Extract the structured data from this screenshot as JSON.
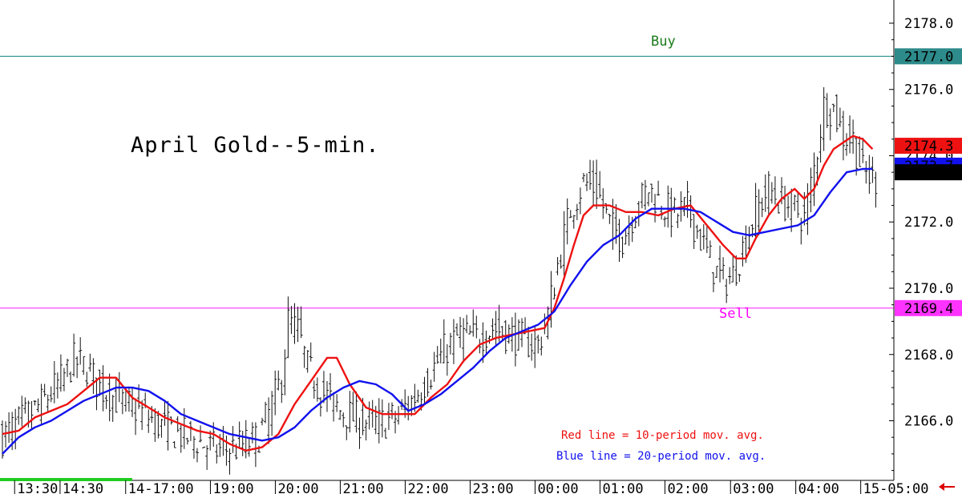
{
  "chart_data": {
    "type": "bar",
    "title": "April Gold--5-min.",
    "ylim": [
      2164.2,
      2178.7
    ],
    "y_ticks": [
      "2178.0",
      "2176.0",
      "2174.0",
      "2172.0",
      "2170.0",
      "2168.0",
      "2166.0"
    ],
    "y_tick_values": [
      2178,
      2176,
      2174,
      2172,
      2170,
      2168,
      2166
    ],
    "x_ticks": [
      "13:30",
      "14:30",
      "14-17:00",
      "19:00",
      "20:00",
      "21:00",
      "22:00",
      "23:00",
      "00:00",
      "01:00",
      "02:00",
      "03:00",
      "04:00",
      "15-05:00"
    ],
    "x_tick_bars": [
      4.5,
      18.5,
      38.7,
      64.8,
      84.8,
      104.8,
      124.8,
      144.8,
      164.8,
      184.8,
      204.8,
      225.0,
      245.1,
      265.1
    ],
    "price_levels": [
      {
        "name": "buy-line",
        "label": "Buy",
        "tag": "2177.0",
        "value": 2177.0,
        "color": "#3a9a9a",
        "tag_color": "#2e8b8b",
        "label_color": "#1b7a1b"
      },
      {
        "name": "sell-line",
        "label": "Sell",
        "tag": "2169.4",
        "value": 2169.4,
        "color": "#ff33ff",
        "tag_color": "#ff33ff",
        "label_color": "#ff00ff"
      }
    ],
    "last_values": [
      {
        "name": "ma10-last-tag",
        "tag": "2174.3",
        "value": 2174.3,
        "color": "#ee1111",
        "text_color": "#ffffff"
      },
      {
        "name": "ma20-last-tag",
        "tag": "2173.7",
        "value": 2173.7,
        "color": "#1111ee",
        "text_color": "#ffffff"
      },
      {
        "name": "price-last-tag",
        "tag": "2173.5",
        "value": 2173.5,
        "color": "#000000",
        "text_color": "#ffffff"
      }
    ],
    "legend": [
      {
        "text": "Red line = 10-period mov. avg.",
        "color": "#ee1111"
      },
      {
        "text": "Blue line = 20-period mov. avg.",
        "color": "#1111ee"
      }
    ],
    "series": [
      {
        "name": "10-period mov. avg.",
        "color": "#ee1111",
        "points": [
          [
            0,
            2165.6
          ],
          [
            5,
            2165.7
          ],
          [
            10,
            2166.1
          ],
          [
            15,
            2166.3
          ],
          [
            20,
            2166.5
          ],
          [
            25,
            2166.9
          ],
          [
            30,
            2167.3
          ],
          [
            35,
            2167.3
          ],
          [
            40,
            2166.7
          ],
          [
            45,
            2166.4
          ],
          [
            50,
            2166.1
          ],
          [
            55,
            2165.9
          ],
          [
            60,
            2165.7
          ],
          [
            65,
            2165.6
          ],
          [
            70,
            2165.3
          ],
          [
            75,
            2165.1
          ],
          [
            80,
            2165.2
          ],
          [
            85,
            2165.6
          ],
          [
            90,
            2166.5
          ],
          [
            95,
            2167.2
          ],
          [
            100,
            2167.9
          ],
          [
            103,
            2167.9
          ],
          [
            107,
            2167.1
          ],
          [
            112,
            2166.4
          ],
          [
            117,
            2166.2
          ],
          [
            122,
            2166.2
          ],
          [
            127,
            2166.2
          ],
          [
            132,
            2166.7
          ],
          [
            137,
            2167.1
          ],
          [
            142,
            2167.8
          ],
          [
            147,
            2168.3
          ],
          [
            152,
            2168.5
          ],
          [
            157,
            2168.6
          ],
          [
            162,
            2168.7
          ],
          [
            167,
            2168.8
          ],
          [
            170,
            2169.4
          ],
          [
            173,
            2170.3
          ],
          [
            176,
            2171.3
          ],
          [
            179,
            2172.2
          ],
          [
            182,
            2172.5
          ],
          [
            187,
            2172.5
          ],
          [
            192,
            2172.3
          ],
          [
            197,
            2172.3
          ],
          [
            202,
            2172.2
          ],
          [
            207,
            2172.4
          ],
          [
            212,
            2172.5
          ],
          [
            217,
            2171.9
          ],
          [
            222,
            2171.3
          ],
          [
            226,
            2170.9
          ],
          [
            229,
            2170.9
          ],
          [
            232,
            2171.5
          ],
          [
            236,
            2172.2
          ],
          [
            240,
            2172.7
          ],
          [
            244,
            2173.0
          ],
          [
            247,
            2172.7
          ],
          [
            250,
            2173.0
          ],
          [
            253,
            2173.7
          ],
          [
            256,
            2174.2
          ],
          [
            259,
            2174.4
          ],
          [
            262,
            2174.6
          ],
          [
            265,
            2174.5
          ],
          [
            268,
            2174.2
          ]
        ]
      },
      {
        "name": "20-period mov. avg.",
        "color": "#1111ee",
        "points": [
          [
            0,
            2165.0
          ],
          [
            5,
            2165.5
          ],
          [
            10,
            2165.8
          ],
          [
            15,
            2166.0
          ],
          [
            20,
            2166.3
          ],
          [
            25,
            2166.6
          ],
          [
            30,
            2166.8
          ],
          [
            35,
            2167.0
          ],
          [
            40,
            2167.0
          ],
          [
            45,
            2166.9
          ],
          [
            50,
            2166.6
          ],
          [
            55,
            2166.2
          ],
          [
            60,
            2166.0
          ],
          [
            65,
            2165.8
          ],
          [
            70,
            2165.6
          ],
          [
            75,
            2165.5
          ],
          [
            80,
            2165.4
          ],
          [
            85,
            2165.5
          ],
          [
            90,
            2165.8
          ],
          [
            95,
            2166.3
          ],
          [
            100,
            2166.7
          ],
          [
            105,
            2167.0
          ],
          [
            110,
            2167.2
          ],
          [
            115,
            2167.1
          ],
          [
            120,
            2166.8
          ],
          [
            125,
            2166.3
          ],
          [
            130,
            2166.5
          ],
          [
            135,
            2166.8
          ],
          [
            140,
            2167.2
          ],
          [
            145,
            2167.6
          ],
          [
            150,
            2168.1
          ],
          [
            155,
            2168.5
          ],
          [
            160,
            2168.7
          ],
          [
            165,
            2168.9
          ],
          [
            170,
            2169.3
          ],
          [
            175,
            2170.1
          ],
          [
            180,
            2170.8
          ],
          [
            185,
            2171.3
          ],
          [
            190,
            2171.6
          ],
          [
            195,
            2172.1
          ],
          [
            200,
            2172.4
          ],
          [
            205,
            2172.4
          ],
          [
            210,
            2172.4
          ],
          [
            215,
            2172.3
          ],
          [
            220,
            2172.0
          ],
          [
            225,
            2171.7
          ],
          [
            230,
            2171.6
          ],
          [
            235,
            2171.7
          ],
          [
            240,
            2171.8
          ],
          [
            245,
            2171.9
          ],
          [
            250,
            2172.2
          ],
          [
            255,
            2172.9
          ],
          [
            260,
            2173.5
          ],
          [
            265,
            2173.6
          ],
          [
            268,
            2173.6
          ]
        ]
      }
    ],
    "price_path": [
      [
        0,
        2165.5
      ],
      [
        6,
        2166.0
      ],
      [
        12,
        2166.5
      ],
      [
        18,
        2167.2
      ],
      [
        22,
        2167.8
      ],
      [
        26,
        2167.6
      ],
      [
        30,
        2167.0
      ],
      [
        36,
        2166.6
      ],
      [
        42,
        2166.3
      ],
      [
        48,
        2165.9
      ],
      [
        54,
        2165.6
      ],
      [
        60,
        2165.4
      ],
      [
        66,
        2165.1
      ],
      [
        72,
        2165.2
      ],
      [
        78,
        2165.4
      ],
      [
        82,
        2166.2
      ],
      [
        86,
        2167.3
      ],
      [
        88,
        2169.0
      ],
      [
        91,
        2168.7
      ],
      [
        94,
        2167.6
      ],
      [
        98,
        2166.9
      ],
      [
        104,
        2166.3
      ],
      [
        110,
        2166.0
      ],
      [
        116,
        2165.9
      ],
      [
        121,
        2166.1
      ],
      [
        126,
        2166.6
      ],
      [
        131,
        2167.3
      ],
      [
        136,
        2168.1
      ],
      [
        141,
        2168.6
      ],
      [
        146,
        2168.5
      ],
      [
        151,
        2168.8
      ],
      [
        156,
        2168.6
      ],
      [
        161,
        2168.4
      ],
      [
        165,
        2168.3
      ],
      [
        168,
        2169.2
      ],
      [
        171,
        2170.7
      ],
      [
        175,
        2172.4
      ],
      [
        179,
        2173.2
      ],
      [
        183,
        2173.0
      ],
      [
        187,
        2171.9
      ],
      [
        191,
        2171.5
      ],
      [
        195,
        2172.4
      ],
      [
        199,
        2173.0
      ],
      [
        203,
        2172.5
      ],
      [
        207,
        2172.2
      ],
      [
        211,
        2172.4
      ],
      [
        215,
        2171.5
      ],
      [
        219,
        2170.6
      ],
      [
        222,
        2170.2
      ],
      [
        225,
        2170.4
      ],
      [
        228,
        2171.2
      ],
      [
        232,
        2172.3
      ],
      [
        236,
        2173.0
      ],
      [
        240,
        2172.6
      ],
      [
        244,
        2172.4
      ],
      [
        247,
        2172.1
      ],
      [
        250,
        2173.6
      ],
      [
        253,
        2175.5
      ],
      [
        256,
        2175.4
      ],
      [
        259,
        2174.6
      ],
      [
        262,
        2174.5
      ],
      [
        265,
        2173.5
      ],
      [
        268,
        2173.3
      ]
    ],
    "bar_count": 270,
    "x_session_highlight": [
      0,
      39
    ],
    "grid": false
  }
}
